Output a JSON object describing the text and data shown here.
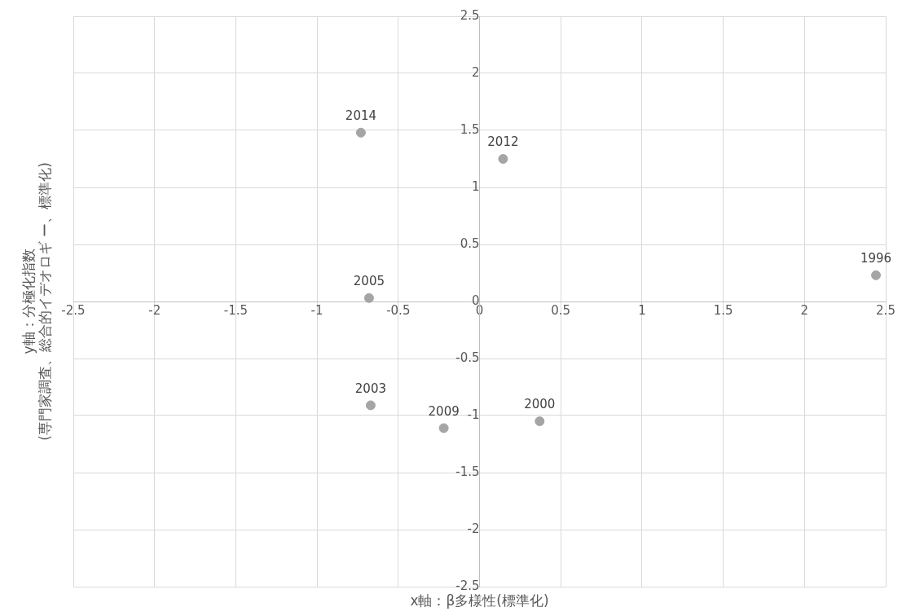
{
  "chart_data": {
    "type": "scatter",
    "xlabel": "x軸：β多様性(標準化)",
    "ylabel": "y軸：分極化指数\n(専門家調査、総合的イデオロギ ー、標準化)",
    "x": [
      -0.73,
      0.145,
      2.44,
      -0.68,
      -0.67,
      -0.22,
      0.37
    ],
    "values": [
      1.48,
      1.25,
      0.23,
      0.03,
      -0.91,
      -1.11,
      -1.05
    ],
    "annotations": [
      {
        "text": "2014",
        "x": -0.73,
        "y": 1.48
      },
      {
        "text": "2012",
        "x": 0.145,
        "y": 1.25
      },
      {
        "text": "1996",
        "x": 2.44,
        "y": 0.23
      },
      {
        "text": "2005",
        "x": -0.68,
        "y": 0.03
      },
      {
        "text": "2003",
        "x": -0.67,
        "y": -0.91
      },
      {
        "text": "2009",
        "x": -0.22,
        "y": -1.11
      },
      {
        "text": "2000",
        "x": 0.37,
        "y": -1.05
      }
    ],
    "color": "#a5a5a5",
    "marker": "circle",
    "xlim": [
      -2.5,
      2.5
    ],
    "xticks": [
      -2.5,
      -2,
      -1.5,
      -1,
      -0.5,
      0,
      0.5,
      1,
      1.5,
      2,
      2.5
    ],
    "ylim": [
      -2.5,
      2.5
    ],
    "yticks": [
      -2.5,
      -2,
      -1.5,
      -1,
      -0.5,
      0,
      0.5,
      1,
      1.5,
      2,
      2.5
    ],
    "grid": true,
    "legend": false
  }
}
